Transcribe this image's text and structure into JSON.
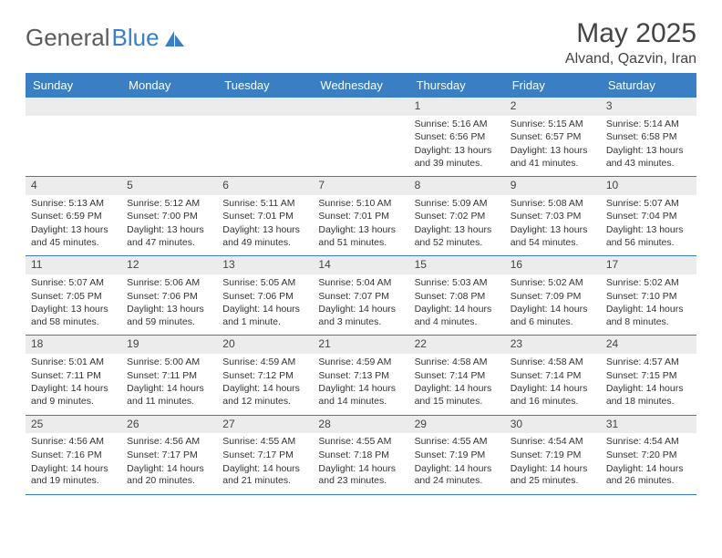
{
  "brand": {
    "part1": "General",
    "part2": "Blue"
  },
  "header": {
    "title": "May 2025",
    "location": "Alvand, Qazvin, Iran"
  },
  "colors": {
    "header_bg": "#3a7fc3",
    "header_text": "#ffffff",
    "daynum_bg": "#ececec",
    "text": "#333333",
    "page_bg": "#ffffff"
  },
  "day_labels": [
    "Sunday",
    "Monday",
    "Tuesday",
    "Wednesday",
    "Thursday",
    "Friday",
    "Saturday"
  ],
  "weeks": [
    [
      {
        "n": "",
        "sr": "",
        "ss": "",
        "dl": ""
      },
      {
        "n": "",
        "sr": "",
        "ss": "",
        "dl": ""
      },
      {
        "n": "",
        "sr": "",
        "ss": "",
        "dl": ""
      },
      {
        "n": "",
        "sr": "",
        "ss": "",
        "dl": ""
      },
      {
        "n": "1",
        "sr": "Sunrise: 5:16 AM",
        "ss": "Sunset: 6:56 PM",
        "dl": "Daylight: 13 hours and 39 minutes."
      },
      {
        "n": "2",
        "sr": "Sunrise: 5:15 AM",
        "ss": "Sunset: 6:57 PM",
        "dl": "Daylight: 13 hours and 41 minutes."
      },
      {
        "n": "3",
        "sr": "Sunrise: 5:14 AM",
        "ss": "Sunset: 6:58 PM",
        "dl": "Daylight: 13 hours and 43 minutes."
      }
    ],
    [
      {
        "n": "4",
        "sr": "Sunrise: 5:13 AM",
        "ss": "Sunset: 6:59 PM",
        "dl": "Daylight: 13 hours and 45 minutes."
      },
      {
        "n": "5",
        "sr": "Sunrise: 5:12 AM",
        "ss": "Sunset: 7:00 PM",
        "dl": "Daylight: 13 hours and 47 minutes."
      },
      {
        "n": "6",
        "sr": "Sunrise: 5:11 AM",
        "ss": "Sunset: 7:01 PM",
        "dl": "Daylight: 13 hours and 49 minutes."
      },
      {
        "n": "7",
        "sr": "Sunrise: 5:10 AM",
        "ss": "Sunset: 7:01 PM",
        "dl": "Daylight: 13 hours and 51 minutes."
      },
      {
        "n": "8",
        "sr": "Sunrise: 5:09 AM",
        "ss": "Sunset: 7:02 PM",
        "dl": "Daylight: 13 hours and 52 minutes."
      },
      {
        "n": "9",
        "sr": "Sunrise: 5:08 AM",
        "ss": "Sunset: 7:03 PM",
        "dl": "Daylight: 13 hours and 54 minutes."
      },
      {
        "n": "10",
        "sr": "Sunrise: 5:07 AM",
        "ss": "Sunset: 7:04 PM",
        "dl": "Daylight: 13 hours and 56 minutes."
      }
    ],
    [
      {
        "n": "11",
        "sr": "Sunrise: 5:07 AM",
        "ss": "Sunset: 7:05 PM",
        "dl": "Daylight: 13 hours and 58 minutes."
      },
      {
        "n": "12",
        "sr": "Sunrise: 5:06 AM",
        "ss": "Sunset: 7:06 PM",
        "dl": "Daylight: 13 hours and 59 minutes."
      },
      {
        "n": "13",
        "sr": "Sunrise: 5:05 AM",
        "ss": "Sunset: 7:06 PM",
        "dl": "Daylight: 14 hours and 1 minute."
      },
      {
        "n": "14",
        "sr": "Sunrise: 5:04 AM",
        "ss": "Sunset: 7:07 PM",
        "dl": "Daylight: 14 hours and 3 minutes."
      },
      {
        "n": "15",
        "sr": "Sunrise: 5:03 AM",
        "ss": "Sunset: 7:08 PM",
        "dl": "Daylight: 14 hours and 4 minutes."
      },
      {
        "n": "16",
        "sr": "Sunrise: 5:02 AM",
        "ss": "Sunset: 7:09 PM",
        "dl": "Daylight: 14 hours and 6 minutes."
      },
      {
        "n": "17",
        "sr": "Sunrise: 5:02 AM",
        "ss": "Sunset: 7:10 PM",
        "dl": "Daylight: 14 hours and 8 minutes."
      }
    ],
    [
      {
        "n": "18",
        "sr": "Sunrise: 5:01 AM",
        "ss": "Sunset: 7:11 PM",
        "dl": "Daylight: 14 hours and 9 minutes."
      },
      {
        "n": "19",
        "sr": "Sunrise: 5:00 AM",
        "ss": "Sunset: 7:11 PM",
        "dl": "Daylight: 14 hours and 11 minutes."
      },
      {
        "n": "20",
        "sr": "Sunrise: 4:59 AM",
        "ss": "Sunset: 7:12 PM",
        "dl": "Daylight: 14 hours and 12 minutes."
      },
      {
        "n": "21",
        "sr": "Sunrise: 4:59 AM",
        "ss": "Sunset: 7:13 PM",
        "dl": "Daylight: 14 hours and 14 minutes."
      },
      {
        "n": "22",
        "sr": "Sunrise: 4:58 AM",
        "ss": "Sunset: 7:14 PM",
        "dl": "Daylight: 14 hours and 15 minutes."
      },
      {
        "n": "23",
        "sr": "Sunrise: 4:58 AM",
        "ss": "Sunset: 7:14 PM",
        "dl": "Daylight: 14 hours and 16 minutes."
      },
      {
        "n": "24",
        "sr": "Sunrise: 4:57 AM",
        "ss": "Sunset: 7:15 PM",
        "dl": "Daylight: 14 hours and 18 minutes."
      }
    ],
    [
      {
        "n": "25",
        "sr": "Sunrise: 4:56 AM",
        "ss": "Sunset: 7:16 PM",
        "dl": "Daylight: 14 hours and 19 minutes."
      },
      {
        "n": "26",
        "sr": "Sunrise: 4:56 AM",
        "ss": "Sunset: 7:17 PM",
        "dl": "Daylight: 14 hours and 20 minutes."
      },
      {
        "n": "27",
        "sr": "Sunrise: 4:55 AM",
        "ss": "Sunset: 7:17 PM",
        "dl": "Daylight: 14 hours and 21 minutes."
      },
      {
        "n": "28",
        "sr": "Sunrise: 4:55 AM",
        "ss": "Sunset: 7:18 PM",
        "dl": "Daylight: 14 hours and 23 minutes."
      },
      {
        "n": "29",
        "sr": "Sunrise: 4:55 AM",
        "ss": "Sunset: 7:19 PM",
        "dl": "Daylight: 14 hours and 24 minutes."
      },
      {
        "n": "30",
        "sr": "Sunrise: 4:54 AM",
        "ss": "Sunset: 7:19 PM",
        "dl": "Daylight: 14 hours and 25 minutes."
      },
      {
        "n": "31",
        "sr": "Sunrise: 4:54 AM",
        "ss": "Sunset: 7:20 PM",
        "dl": "Daylight: 14 hours and 26 minutes."
      }
    ]
  ]
}
